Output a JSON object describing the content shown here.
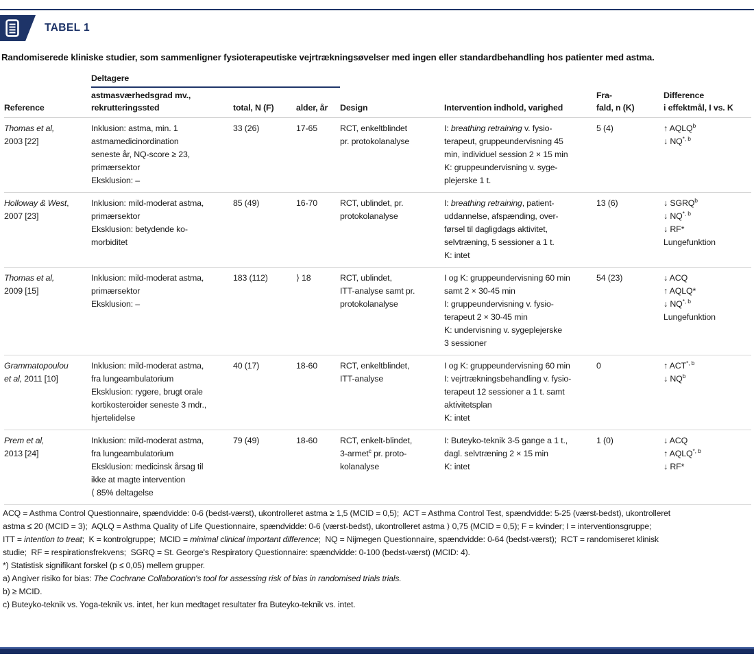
{
  "colors": {
    "accent_navy": "#1e3468"
  },
  "badge": {
    "label": "TABEL 1"
  },
  "caption": "Randomiserede kliniske studier, som sammenligner fysioterapeutiske vejrtrækningsøvelser med ingen eller standardbehandling hos patienter med astma.",
  "table": {
    "group_header": "Deltagere",
    "columns": [
      {
        "label": "Reference"
      },
      {
        "label": "astmasværhedsgrad mv.,\nrekrutteringssted"
      },
      {
        "label": "total, N (F)"
      },
      {
        "label": "alder, år"
      },
      {
        "label": "Design"
      },
      {
        "label": "Intervention indhold, varighed"
      },
      {
        "label": "Fra-\nfald, n (K)"
      },
      {
        "label": "Difference\ni effektmål, I vs. K"
      }
    ],
    "rows": [
      {
        "reference": "*Thomas et al,*\n2003 [22]",
        "severity": "Inklusion: astma, min. 1\nastmamedicinordination\nseneste år, NQ-score ≥ 23,\nprimærsektor\nEksklusion: –",
        "total": "33 (26)",
        "age": "17-65",
        "design": "RCT, enkeltblindet\npr. protokolanalyse",
        "intervention": "I: *breathing retraining* v. fysio-\nterapeut, gruppeundervisning 45\nmin, individuel session 2 × 15 min\nK: gruppeundervisning v. syge-\nplejerske 1 t.",
        "dropout": "5 (4)",
        "difference": "↑ AQLQ^b^\n↓ NQ^*, b^"
      },
      {
        "reference": "*Holloway & West*,\n2007 [23]",
        "severity": "Inklusion: mild-moderat astma,\nprimærsektor\nEksklusion: betydende ko-\nmorbiditet",
        "total": "85 (49)",
        "age": "16-70",
        "design": "RCT, ublindet, pr.\nprotokolanalyse",
        "intervention": "I: *breathing retraining*, patient-\nuddannelse, afspænding, over-\nførsel til dagligdags aktivitet,\nselvtræning, 5 sessioner a 1 t.\nK: intet",
        "dropout": "13 (6)",
        "difference": "↓ SGRQ^b^\n↓ NQ^*, b^\n↓ RF*\nLungefunktion"
      },
      {
        "reference": "*Thomas et al,*\n2009 [15]",
        "severity": "Inklusion: mild-moderat astma,\nprimærsektor\nEksklusion: –",
        "total": "183 (112)",
        "age": "⟩ 18",
        "design": "RCT, ublindet,\nITT-analyse samt pr.\nprotokolanalyse",
        "intervention": "I og K: gruppeundervisning 60 min\nsamt 2 × 30-45 min\nI: gruppeundervisning v. fysio-\nterapeut 2 × 30-45 min\nK: undervisning v. sygeplejerske\n3 sessioner",
        "dropout": "54 (23)",
        "difference": "↓ ACQ\n↑ AQLQ*\n↓ NQ^*, b^\nLungefunktion"
      },
      {
        "reference": "*Grammatopoulou*\n*et al,* 2011 [10]",
        "severity": "Inklusion: mild-moderat astma,\nfra lungeambulatorium\nEksklusion: rygere, brugt orale\nkortikosteroider seneste 3 mdr.,\nhjertelidelse",
        "total": "40 (17)",
        "age": "18-60",
        "design": "RCT, enkeltblindet,\nITT-analyse",
        "intervention": "I og K: gruppeundervisning 60 min\nI: vejrtrækningsbehandling v. fysio-\nterapeut 12 sessioner a 1 t. samt\naktivitetsplan\nK: intet",
        "dropout": "0",
        "difference": "↑ ACT^*, b^\n↓ NQ^b^"
      },
      {
        "reference": "*Prem et al,*\n2013 [24]",
        "severity": "Inklusion: mild-moderat astma,\nfra lungeambulatorium\nEksklusion: medicinsk årsag til\nikke at magte intervention\n⟨ 85% deltagelse",
        "total": "79 (49)",
        "age": "18-60",
        "design": "RCT, enkelt-blindet,\n3-armet^c^ pr. proto-\nkolanalyse",
        "intervention": "I: Buteyko-teknik 3-5 gange a 1 t.,\ndagl. selvtræning 2 × 15 min\nK: intet",
        "dropout": "1 (0)",
        "difference": "↓ ACQ\n↑ AQLQ^*, b^\n↓ RF*"
      }
    ]
  },
  "footnotes": [
    "ACQ = Asthma Control Questionnaire, spændvidde: 0-6 (bedst-værst), ukontrolleret astma ≥ 1,5 (MCID = 0,5);  ACT = Asthma Control Test, spændvidde: 5-25 (værst-bedst), ukontrolleret\nastma ≤ 20 (MCID = 3);  AQLQ = Asthma Quality of Life Questionnaire, spændvidde: 0-6 (værst-bedst), ukontrolleret astma ⟩ 0,75 (MCID = 0,5); F = kvinder; I = interventionsgruppe;\nITT = *intention to treat*;  K = kontrolgruppe;  MCID = *minimal clinical important difference*;  NQ = Nijmegen Questionnaire, spændvidde: 0-64 (bedst-værst);  RCT = randomiseret klinisk\nstudie;  RF = respirationsfrekvens;  SGRQ = St. George's Respiratory Questionnaire: spændvidde: 0-100 (bedst-værst) (MCID: 4).",
    "*) Statistisk signifikant forskel (p ≤ 0,05) mellem grupper.",
    "a) Angiver risiko for bias: *The Cochrane Collaboration's tool for assessing risk of bias in randomised trials trials.*",
    "b) ≥ MCID.",
    "c) Buteyko-teknik vs. Yoga-teknik vs. intet, her kun medtaget resultater fra Buteyko-teknik vs. intet."
  ]
}
